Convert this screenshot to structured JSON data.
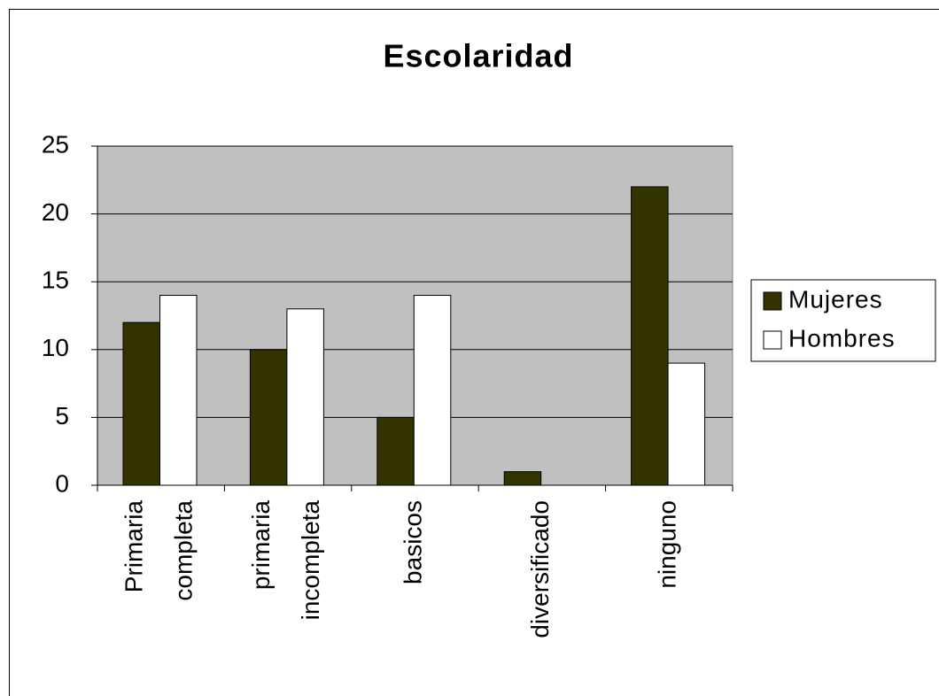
{
  "chart_data": {
    "type": "bar",
    "title": "Escolaridad",
    "categories": [
      "Primaria completa",
      "primaria incompleta",
      "basicos",
      "diversificado",
      "ninguno"
    ],
    "series": [
      {
        "name": "Mujeres",
        "color": "#333300",
        "values": [
          12,
          10,
          5,
          1,
          22
        ]
      },
      {
        "name": "Hombres",
        "color": "#ffffff",
        "values": [
          14,
          13,
          14,
          0,
          9
        ]
      }
    ],
    "ylim": [
      0,
      25
    ],
    "yticks": [
      0,
      5,
      10,
      15,
      20,
      25
    ],
    "grid": true,
    "legend": "right"
  }
}
